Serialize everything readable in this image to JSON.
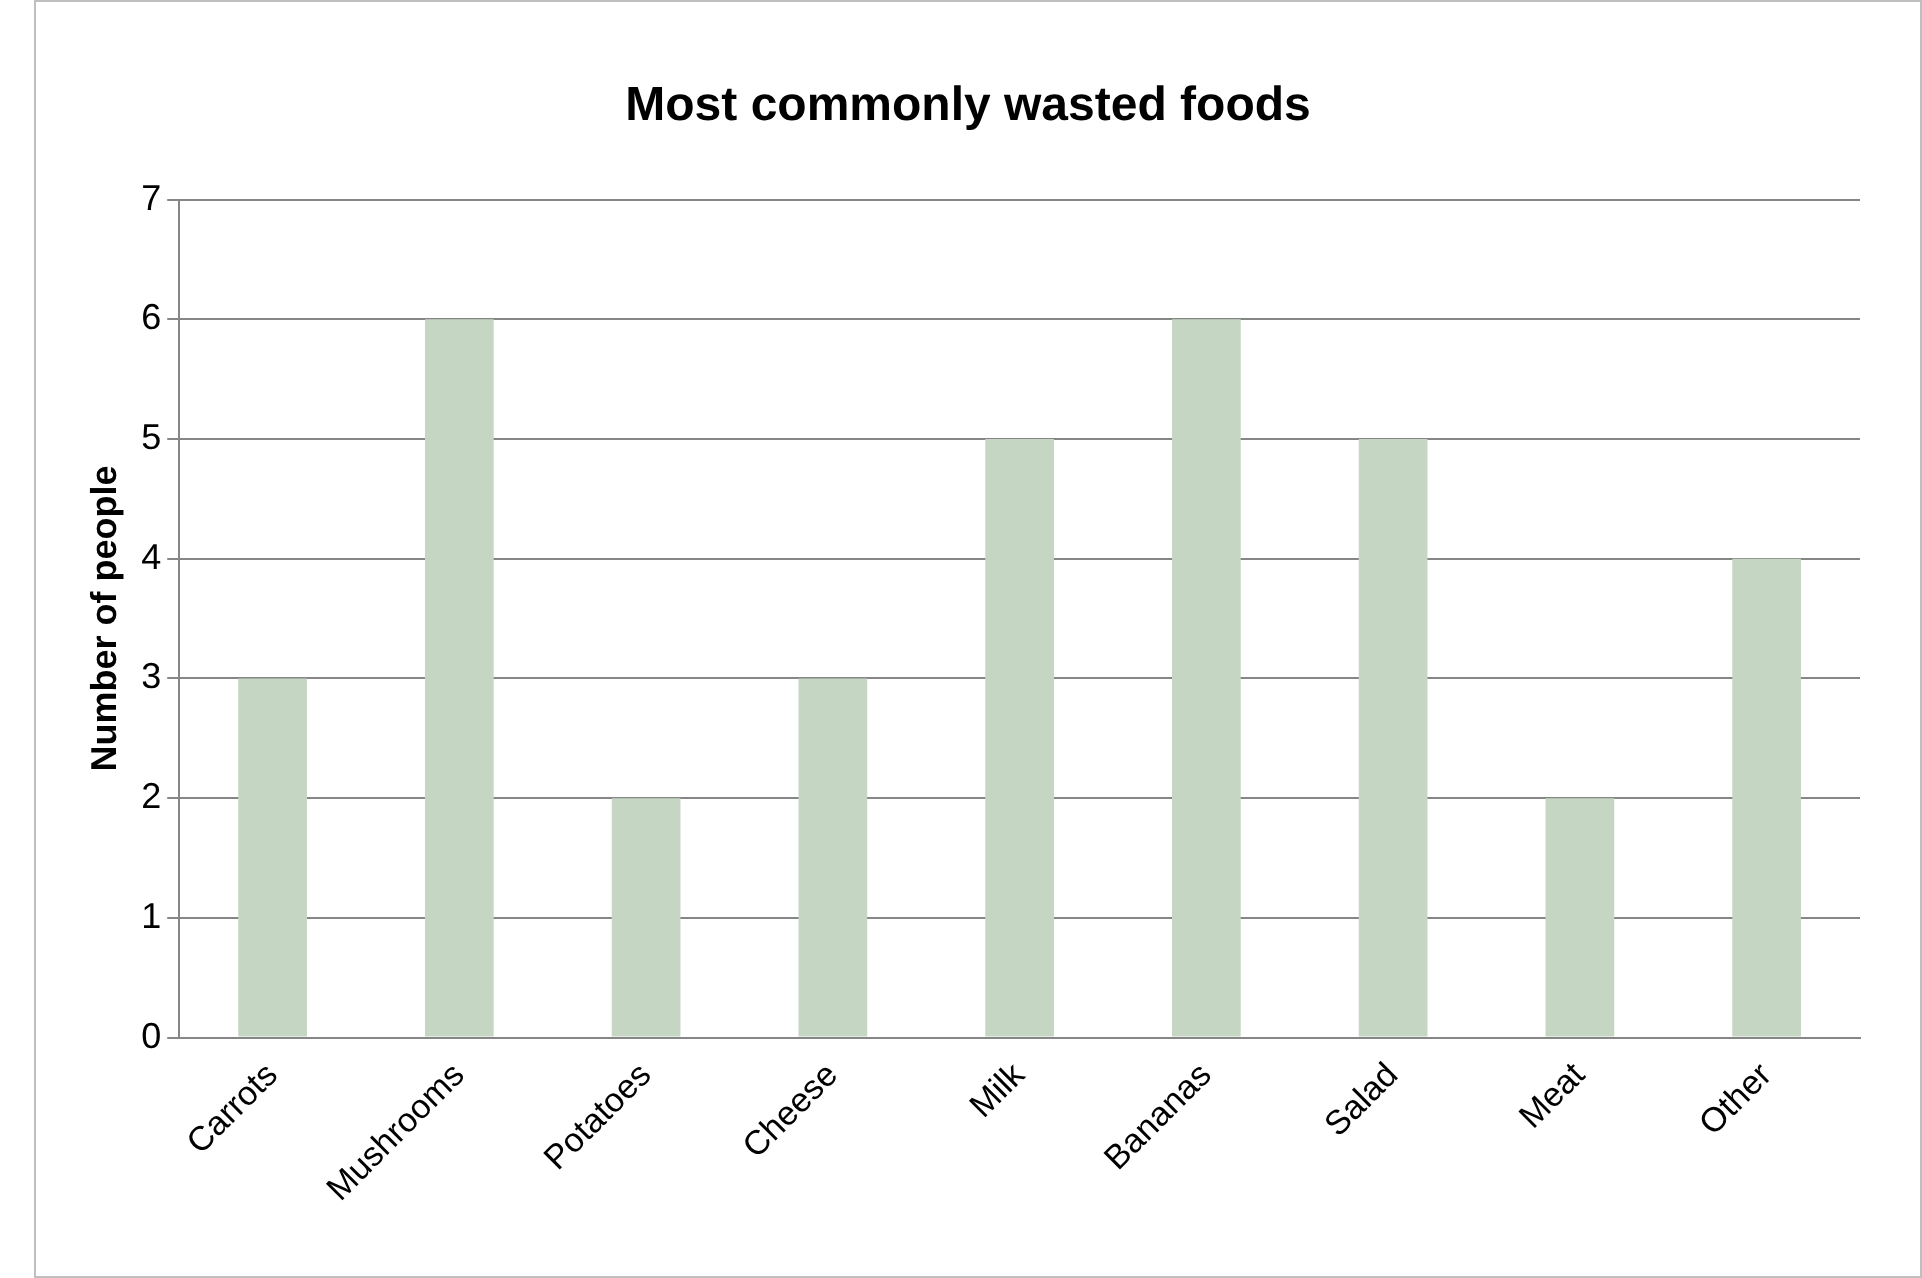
{
  "chart_data": {
    "type": "bar",
    "title": "Most commonly wasted foods",
    "ylabel": "Number of people",
    "categories": [
      "Carrots",
      "Mushrooms",
      "Potatoes",
      "Cheese",
      "Milk",
      "Bananas",
      "Salad",
      "Meat",
      "Other"
    ],
    "values": [
      3,
      6,
      2,
      3,
      5,
      6,
      5,
      2,
      4
    ],
    "color": "#c5d7c3",
    "ylim": [
      0,
      7
    ],
    "yticks": [
      0,
      1,
      2,
      3,
      4,
      5,
      6,
      7
    ],
    "grid": "y",
    "legend": false
  }
}
